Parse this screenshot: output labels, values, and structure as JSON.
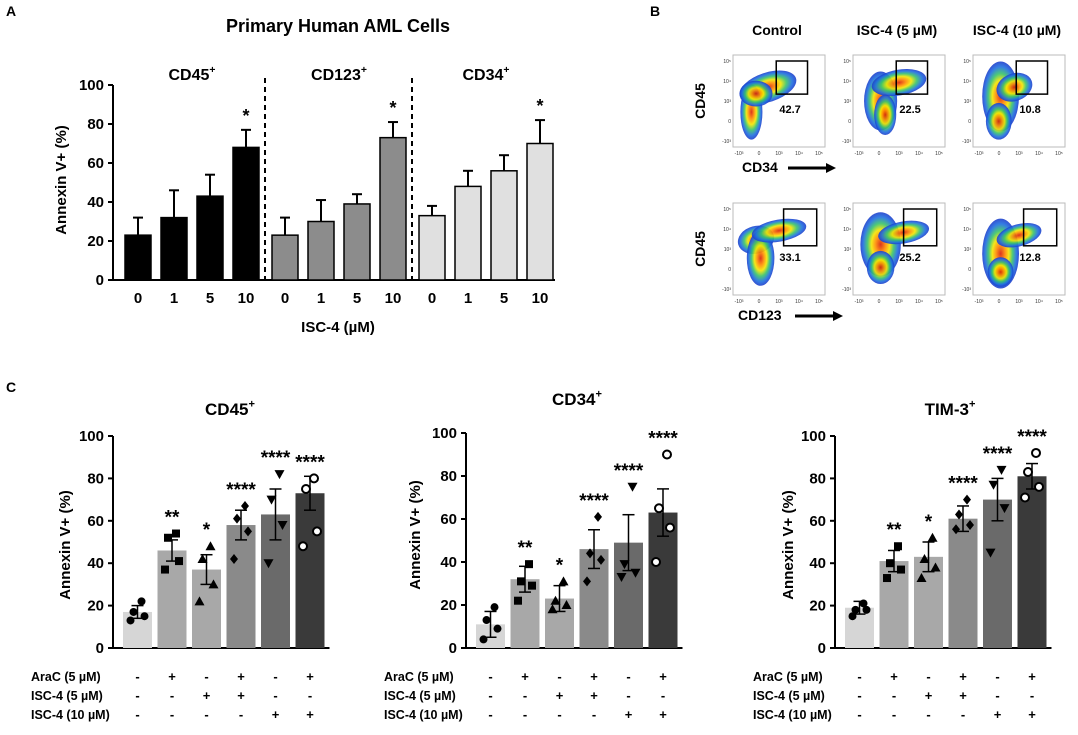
{
  "panel_labels": {
    "a": "A",
    "b": "B",
    "c": "C"
  },
  "chart_data": [
    {
      "type": "bar",
      "panel": "A",
      "title": "Primary Human AML Cells",
      "xlabel": "ISC-4 (µM)",
      "ylabel": "Annexin V+ (%)",
      "ylim": [
        0,
        100
      ],
      "yticks": [
        "0",
        "20",
        "40",
        "60",
        "80",
        "100"
      ],
      "groups": [
        {
          "name": "CD45",
          "sup": "+",
          "color": "#000000",
          "categories": [
            "0",
            "1",
            "5",
            "10"
          ],
          "values": [
            23,
            32,
            43,
            68
          ],
          "errors": [
            9,
            14,
            11,
            9
          ],
          "significance": [
            "",
            "",
            "",
            "*"
          ]
        },
        {
          "name": "CD123",
          "sup": "+",
          "color": "#8c8c8c",
          "categories": [
            "0",
            "1",
            "5",
            "10"
          ],
          "values": [
            23,
            30,
            39,
            73
          ],
          "errors": [
            9,
            11,
            5,
            8
          ],
          "significance": [
            "",
            "",
            "",
            "*"
          ]
        },
        {
          "name": "CD34",
          "sup": "+",
          "color": "#e0e0e0",
          "categories": [
            "0",
            "1",
            "5",
            "10"
          ],
          "values": [
            33,
            48,
            56,
            70
          ],
          "errors": [
            5,
            8,
            8,
            12
          ],
          "significance": [
            "",
            "",
            "",
            "*"
          ]
        }
      ]
    },
    {
      "type": "scatter",
      "panel": "B",
      "description_free": true,
      "columns": [
        "Control",
        "ISC-4 (5 µM)",
        "ISC-4 (10 µM)"
      ],
      "rows": [
        {
          "ylabel": "CD45",
          "xlabel": "CD34",
          "gate_values": [
            "42.7",
            "22.5",
            "10.8"
          ]
        },
        {
          "ylabel": "CD45",
          "xlabel": "CD123",
          "gate_values": [
            "33.1",
            "25.2",
            "12.8"
          ]
        }
      ],
      "tick_labels": {
        "y": [
          "10⁵",
          "10⁴",
          "10³",
          "0",
          "-10³"
        ],
        "x": [
          "-10³",
          "0",
          "10³",
          "10⁴",
          "10⁵"
        ]
      }
    },
    {
      "type": "bar",
      "panel": "C",
      "title": "CD45",
      "title_sup": "+",
      "ylabel": "Annexin V+ (%)",
      "ylim": [
        0,
        100
      ],
      "yticks": [
        "0",
        "20",
        "40",
        "60",
        "80",
        "100"
      ],
      "values": [
        17,
        46,
        37,
        58,
        63,
        73
      ],
      "errors": [
        3,
        5,
        7,
        7,
        12,
        8
      ],
      "significance": [
        "",
        "**",
        "*",
        "****",
        "****",
        "****"
      ],
      "colors": [
        "#d6d6d6",
        "#a8a8a8",
        "#a8a8a8",
        "#8a8a8a",
        "#6a6a6a",
        "#3a3a3a"
      ],
      "markers": [
        "circle",
        "square",
        "triangle",
        "diamond",
        "triangle-down",
        "open-circle"
      ],
      "points": [
        [
          13,
          15,
          17,
          22
        ],
        [
          37,
          41,
          52,
          54
        ],
        [
          22,
          30,
          42,
          48
        ],
        [
          42,
          55,
          61,
          67
        ],
        [
          40,
          58,
          70,
          82
        ],
        [
          48,
          55,
          75,
          80
        ]
      ]
    },
    {
      "type": "bar",
      "panel": "C",
      "title": "CD34",
      "title_sup": "+",
      "ylabel": "Annexin V+ (%)",
      "ylim": [
        0,
        100
      ],
      "yticks": [
        "0",
        "20",
        "40",
        "60",
        "80",
        "100"
      ],
      "values": [
        11,
        32,
        23,
        46,
        49,
        63
      ],
      "errors": [
        6,
        6,
        6,
        9,
        13,
        11
      ],
      "significance": [
        "",
        "**",
        "*",
        "****",
        "****",
        "****"
      ],
      "colors": [
        "#d6d6d6",
        "#a8a8a8",
        "#a8a8a8",
        "#8a8a8a",
        "#6a6a6a",
        "#3a3a3a"
      ],
      "markers": [
        "circle",
        "square",
        "triangle",
        "diamond",
        "triangle-down",
        "open-circle"
      ],
      "points": [
        [
          4,
          9,
          13,
          19
        ],
        [
          22,
          29,
          31,
          39
        ],
        [
          18,
          20,
          22,
          31
        ],
        [
          31,
          41,
          44,
          61
        ],
        [
          33,
          35,
          39,
          75
        ],
        [
          40,
          56,
          65,
          90
        ]
      ]
    },
    {
      "type": "bar",
      "panel": "C",
      "title": "TIM-3",
      "title_sup": "+",
      "ylabel": "Annexin V+ (%)",
      "ylim": [
        0,
        100
      ],
      "yticks": [
        "0",
        "20",
        "40",
        "60",
        "80",
        "100"
      ],
      "values": [
        19,
        41,
        43,
        61,
        70,
        81
      ],
      "errors": [
        3,
        5,
        7,
        6,
        10,
        6
      ],
      "significance": [
        "",
        "**",
        "*",
        "****",
        "****",
        "****"
      ],
      "colors": [
        "#d6d6d6",
        "#a8a8a8",
        "#a8a8a8",
        "#8a8a8a",
        "#6a6a6a",
        "#3a3a3a"
      ],
      "markers": [
        "circle",
        "square",
        "triangle",
        "diamond",
        "triangle-down",
        "open-circle"
      ],
      "points": [
        [
          15,
          18,
          18,
          21
        ],
        [
          33,
          37,
          40,
          48
        ],
        [
          33,
          38,
          42,
          52
        ],
        [
          56,
          58,
          63,
          70
        ],
        [
          45,
          66,
          77,
          84
        ],
        [
          71,
          76,
          83,
          92
        ]
      ]
    }
  ],
  "treatment_table": {
    "rows": [
      {
        "label": "AraC (5 µM)",
        "marks": [
          "-",
          "+",
          "-",
          "+",
          "-",
          "+"
        ]
      },
      {
        "label": "ISC-4 (5 µM)",
        "marks": [
          "-",
          "-",
          "+",
          "+",
          "-",
          "-"
        ]
      },
      {
        "label": "ISC-4 (10 µM)",
        "marks": [
          "-",
          "-",
          "-",
          "-",
          "+",
          "+"
        ]
      }
    ]
  }
}
